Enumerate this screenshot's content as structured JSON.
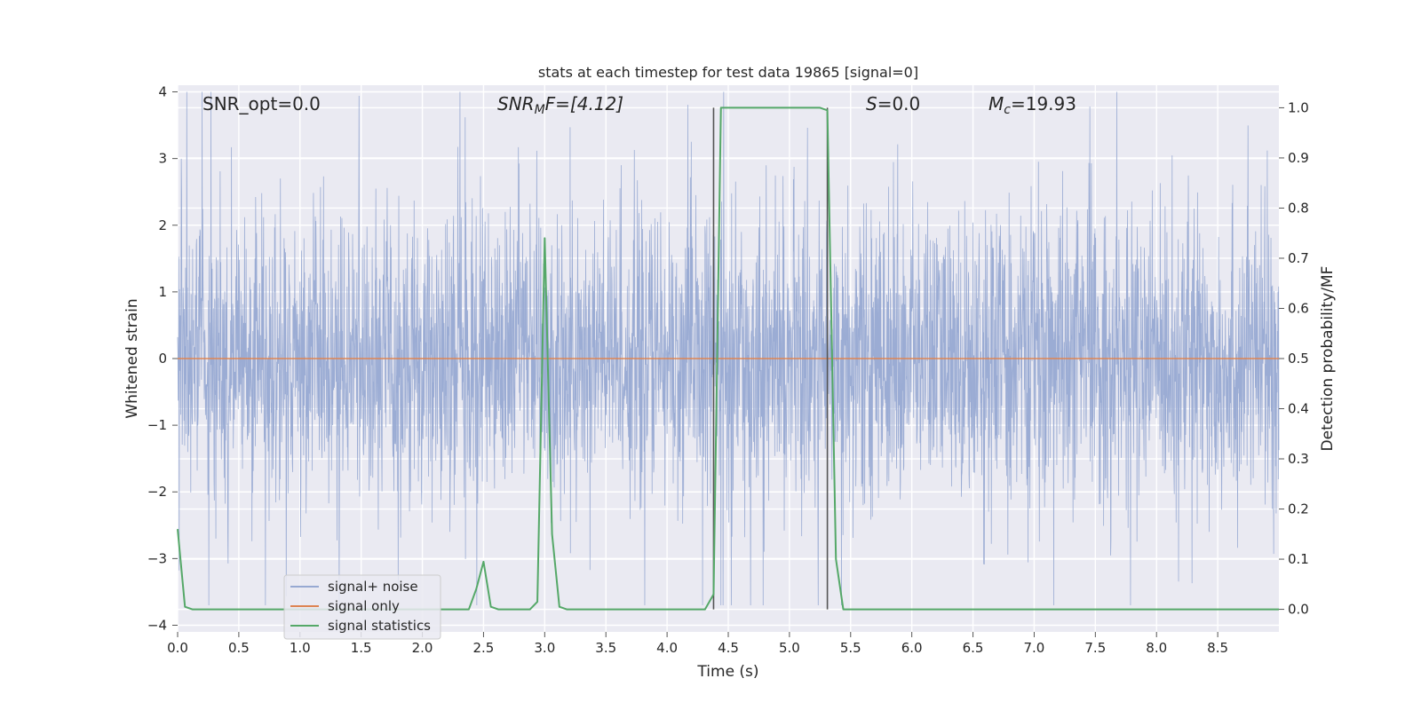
{
  "chart_data": {
    "type": "line",
    "title": "stats at each timestep for test data 19865 [signal=0]",
    "xlabel": "Time (s)",
    "ylabel": "Whitened strain",
    "y2label": "Detection probability/MF",
    "xlim": [
      0,
      9
    ],
    "ylim": [
      -4.1,
      4.1
    ],
    "y2lim": [
      -0.045,
      1.045
    ],
    "xticks": [
      "0.0",
      "0.5",
      "1.0",
      "1.5",
      "2.0",
      "2.5",
      "3.0",
      "3.5",
      "4.0",
      "4.5",
      "5.0",
      "5.5",
      "6.0",
      "6.5",
      "7.0",
      "7.5",
      "8.0",
      "8.5"
    ],
    "yticks": [
      "4",
      "3",
      "2",
      "1",
      "0",
      "−1",
      "−2",
      "−3",
      "−4"
    ],
    "y2ticks": [
      "1.0",
      "0.9",
      "0.8",
      "0.7",
      "0.6",
      "0.5",
      "0.4",
      "0.3",
      "0.2",
      "0.1",
      "0.0"
    ],
    "grid": true,
    "legend_position": "lower-left",
    "annotations": {
      "snr_opt": "SNR_opt=0.0",
      "snr_mf_main": "SNR",
      "snr_mf_sub": "M",
      "snr_mf_rest": "F=[4.12]",
      "s_var": "S",
      "s_rest": "=0.0",
      "mc_var": "M",
      "mc_sub": "c",
      "mc_rest": "=19.93"
    },
    "vlines": [
      4.38,
      5.31
    ],
    "series": [
      {
        "name": "signal+ noise",
        "color": "#97a9d2",
        "note": "whitened strain noise, approx. +/-1.7 with peaks to +/-3.5",
        "y_range": [
          -3.7,
          4.0
        ]
      },
      {
        "name": "signal only",
        "color": "#dd8452",
        "x": [
          0,
          9
        ],
        "y": [
          0,
          0
        ]
      },
      {
        "name": "signal statistics",
        "color": "#55a868",
        "axis": "right",
        "x": [
          0,
          0.06,
          0.12,
          2.38,
          2.44,
          2.5,
          2.56,
          2.62,
          2.88,
          2.94,
          3.0,
          3.06,
          3.12,
          3.18,
          4.31,
          4.38,
          4.44,
          5.25,
          5.31,
          5.38,
          5.44,
          9.0
        ],
        "y": [
          0.16,
          0.005,
          0.0,
          0.0,
          0.04,
          0.095,
          0.005,
          0.0,
          0.0,
          0.015,
          0.74,
          0.15,
          0.005,
          0.0,
          0.0,
          0.03,
          1.0,
          1.0,
          0.995,
          0.1,
          0.0,
          0.0
        ]
      }
    ]
  }
}
